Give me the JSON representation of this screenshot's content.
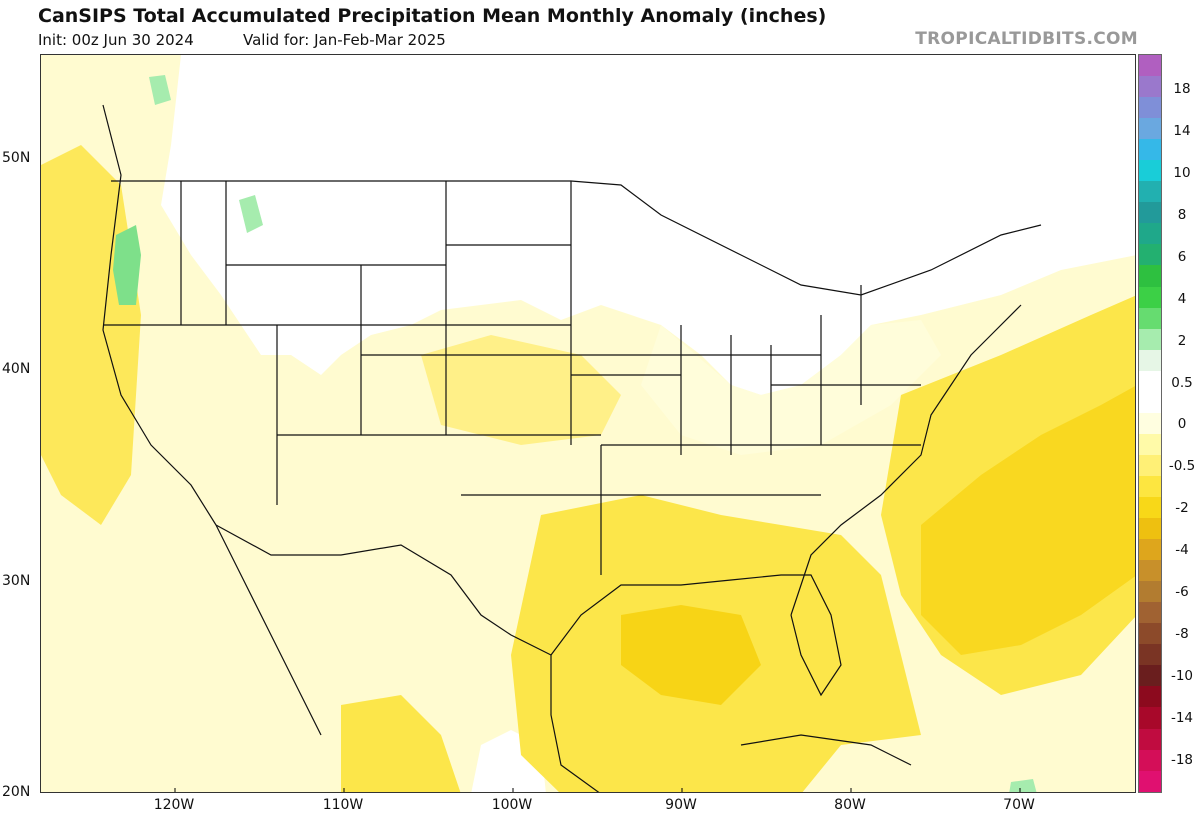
{
  "header": {
    "title": "CanSIPS Total Accumulated Precipitation Mean Monthly Anomaly (inches)",
    "init": "Init: 00z Jun 30 2024",
    "valid": "Valid for: Jan-Feb-Mar 2025",
    "source": "TROPICALTIDBITS.COM"
  },
  "axes": {
    "lat_labels": [
      "50N",
      "40N",
      "30N",
      "20N"
    ],
    "lon_labels": [
      "120W",
      "110W",
      "100W",
      "90W",
      "80W",
      "70W"
    ]
  },
  "colorbar": {
    "labels": [
      "18",
      "14",
      "10",
      "8",
      "6",
      "4",
      "2",
      "0.5",
      "0",
      "-0.5",
      "-2",
      "-4",
      "-6",
      "-8",
      "-10",
      "-14",
      "-18"
    ],
    "colors": [
      "#b05fc0",
      "#9a78cc",
      "#7f8fd8",
      "#6aa8e0",
      "#35b8e8",
      "#19cdd8",
      "#22b0b0",
      "#229a9a",
      "#1fa88a",
      "#23b070",
      "#2ec040",
      "#3cd046",
      "#66dc70",
      "#a6ecae",
      "#e6f6e6",
      "#ffffff",
      "#ffffff",
      "#fffee0",
      "#fffaa8",
      "#fff076",
      "#fde640",
      "#f8d818",
      "#eec010",
      "#dea61c",
      "#c8902a",
      "#b27c30",
      "#a06232",
      "#8c4a2a",
      "#7a3424",
      "#6a1e1e",
      "#8c0a1e",
      "#a8082a",
      "#c00c40",
      "#d40e58",
      "#e01070"
    ]
  }
}
